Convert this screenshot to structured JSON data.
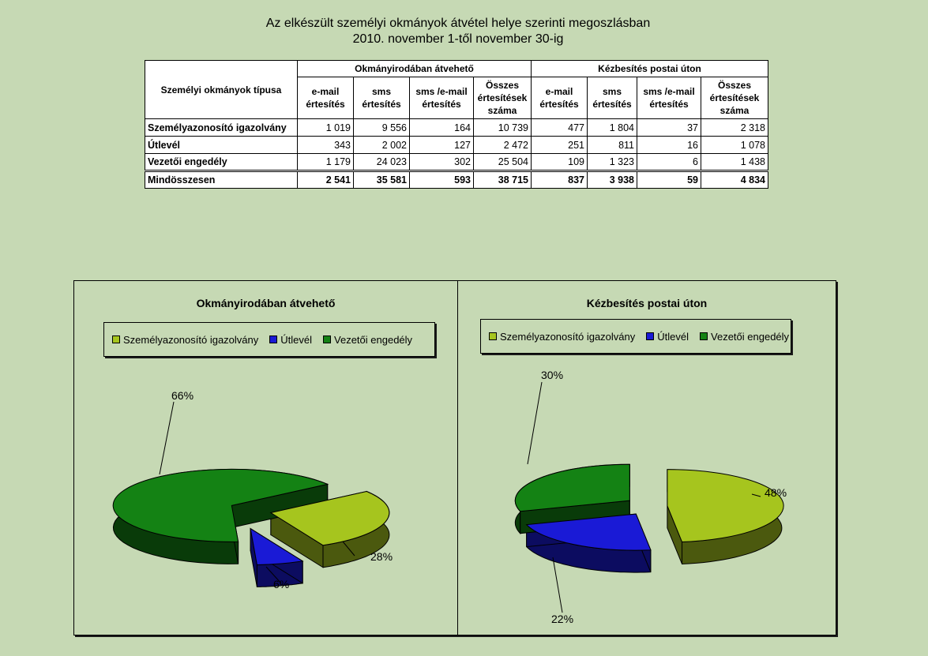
{
  "title": {
    "line1": "Az elkészült személyi okmányok átvétel helye szerinti megoszlásban",
    "line2": "2010. november 1-től november 30-ig"
  },
  "table": {
    "row_header": "Személyi okmányok típusa",
    "groups": [
      "Okmányirodában átvehető",
      "Kézbesítés postai úton"
    ],
    "columns": [
      "e-mail értesítés",
      "sms értesítés",
      "sms /e-mail értesítés",
      "Összes értesítések száma"
    ],
    "rows": [
      {
        "label": "Személyazonosító igazolvány",
        "values": [
          "1 019",
          "9 556",
          "164",
          "10 739",
          "477",
          "1 804",
          "37",
          "2 318"
        ]
      },
      {
        "label": "Útlevél",
        "values": [
          "343",
          "2 002",
          "127",
          "2 472",
          "251",
          "811",
          "16",
          "1 078"
        ]
      },
      {
        "label": "Vezetői engedély",
        "values": [
          "1 179",
          "24 023",
          "302",
          "25 504",
          "109",
          "1 323",
          "6",
          "1 438"
        ]
      },
      {
        "label": "Mindösszesen",
        "values": [
          "2 541",
          "35 581",
          "593",
          "38 715",
          "837",
          "3 938",
          "59",
          "4 834"
        ]
      }
    ]
  },
  "colors": {
    "szemelyi": "#a6c51e",
    "utlevel": "#1a1ad6",
    "vezetoi": "#148214",
    "background": "#c6d9b4"
  },
  "chart_data": [
    {
      "type": "pie",
      "title": "Okmányirodában átvehető",
      "legend_position": "top",
      "categories": [
        "Személyazonosító igazolvány",
        "Útlevél",
        "Vezetői engedély"
      ],
      "values": [
        10739,
        2472,
        25504
      ],
      "labels": [
        "28%",
        "6%",
        "66%"
      ]
    },
    {
      "type": "pie",
      "title": "Kézbesítés postai úton",
      "legend_position": "top",
      "categories": [
        "Személyazonosító igazolvány",
        "Útlevél",
        "Vezetői engedély"
      ],
      "values": [
        2318,
        1078,
        1438
      ],
      "labels": [
        "48%",
        "22%",
        "30%"
      ]
    }
  ]
}
